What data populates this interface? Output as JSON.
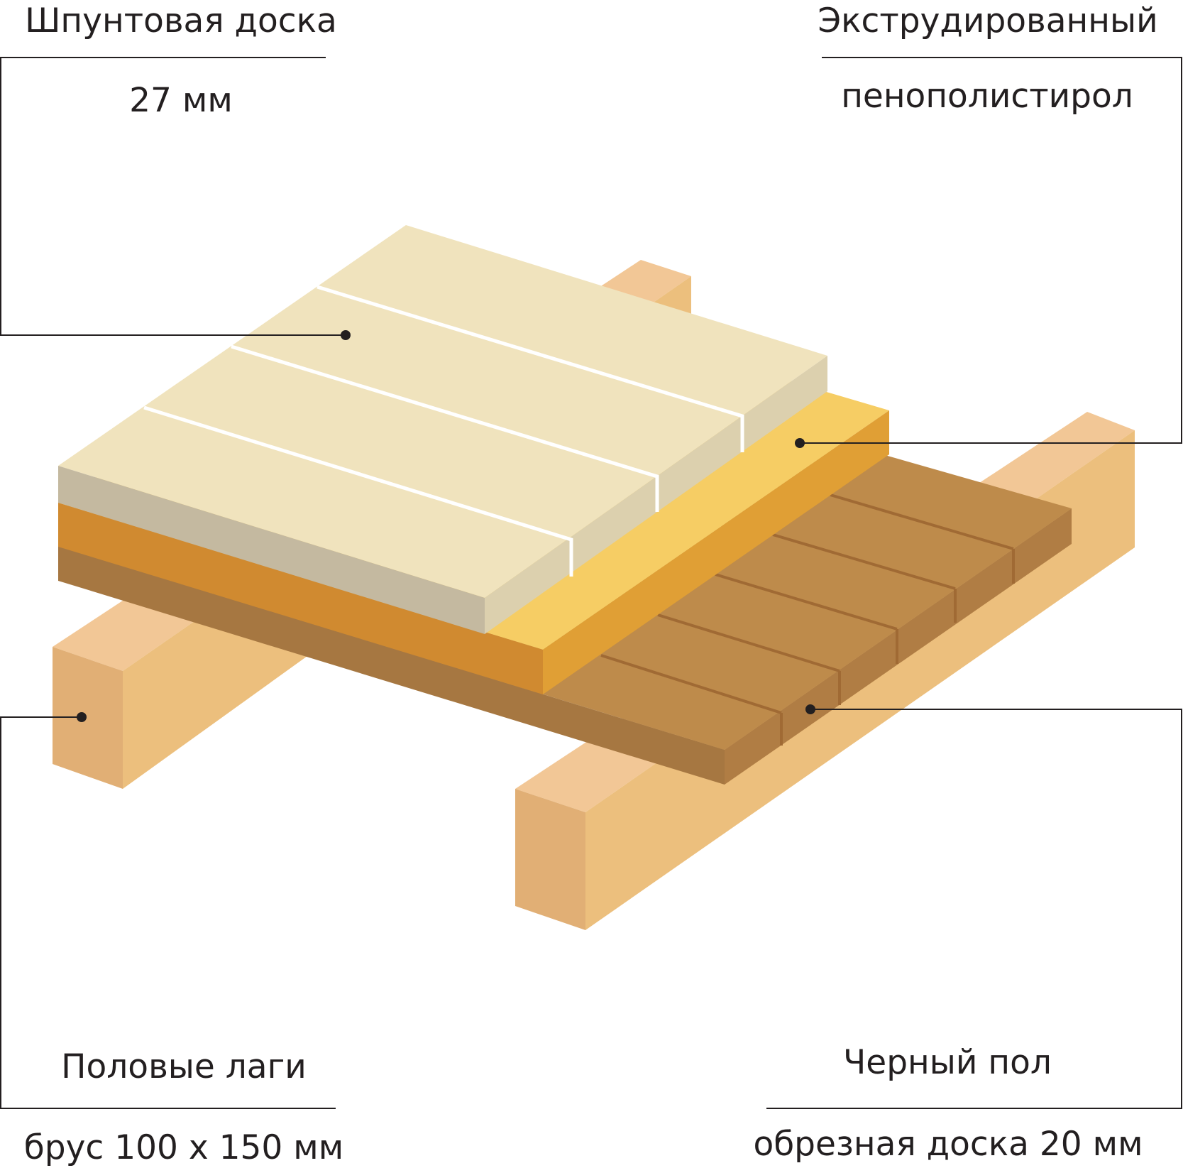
{
  "labels": {
    "tongue_board": {
      "line1": "Шпунтовая доска",
      "line2": "27 мм"
    },
    "insulation": {
      "line1": "Экструдированный",
      "line2": "пенополистирол"
    },
    "joists": {
      "line1": "Половые лаги",
      "line2": "брус 100 х 150 мм"
    },
    "subfloor": {
      "line1": "Черный пол",
      "line2": "обрезная доска 20 мм"
    }
  },
  "colors": {
    "joist_front": "#e1af75",
    "joist_top": "#f2c796",
    "joist_side": "#ecbf7d",
    "subfloor_top": "#be8b4b",
    "subfloor_side": "#a67741",
    "foam_top": "#f6cd64",
    "foam_side_front": "#d08a30",
    "foam_side_right": "#e09f35",
    "board_top": "#f0e3bd",
    "board_front": "#c4b9a0",
    "board_end": "#dcd0ae",
    "line": "#231f20"
  }
}
